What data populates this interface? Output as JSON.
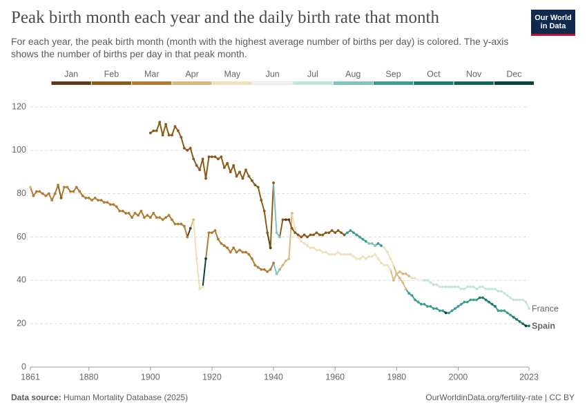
{
  "chart_data": {
    "type": "line",
    "title": "Peak birth month each year and the daily birth rate that month",
    "subtitle": "For each year, the peak birth month (month with the highest average number of births per day) is colored. The y-axis shows the number of births per day in that peak month.",
    "logo": [
      "Our World",
      "in Data"
    ],
    "source_label": "Data source:",
    "source": "Human Mortality Database (2025)",
    "credit": "OurWorldinData.org/fertility-rate | CC BY",
    "months": [
      "Jan",
      "Feb",
      "Mar",
      "Apr",
      "May",
      "Jun",
      "Jul",
      "Aug",
      "Sep",
      "Oct",
      "Nov",
      "Dec"
    ],
    "month_colors": [
      "#5b3a14",
      "#8a5a19",
      "#b07b32",
      "#d9b97e",
      "#eedfbd",
      "#f3f1ef",
      "#c2e5de",
      "#82c6ba",
      "#3d9c92",
      "#1b7b6f",
      "#11645a",
      "#0a4238"
    ],
    "xlim": [
      1861,
      2023
    ],
    "xticks": [
      1861,
      1880,
      1900,
      1920,
      1940,
      1960,
      1980,
      2000,
      2023
    ],
    "ylim": [
      0,
      120
    ],
    "yticks": [
      0,
      20,
      40,
      60,
      80,
      100,
      120
    ],
    "grid": true,
    "x": [
      1861,
      1862,
      1863,
      1864,
      1865,
      1866,
      1867,
      1868,
      1869,
      1870,
      1871,
      1872,
      1873,
      1874,
      1875,
      1876,
      1877,
      1878,
      1879,
      1880,
      1881,
      1882,
      1883,
      1884,
      1885,
      1886,
      1887,
      1888,
      1889,
      1890,
      1891,
      1892,
      1893,
      1894,
      1895,
      1896,
      1897,
      1898,
      1899,
      1900,
      1901,
      1902,
      1903,
      1904,
      1905,
      1906,
      1907,
      1908,
      1909,
      1910,
      1911,
      1912,
      1913,
      1914,
      1915,
      1916,
      1917,
      1918,
      1919,
      1920,
      1921,
      1922,
      1923,
      1924,
      1925,
      1926,
      1927,
      1928,
      1929,
      1930,
      1931,
      1932,
      1933,
      1934,
      1935,
      1936,
      1937,
      1938,
      1939,
      1940,
      1941,
      1942,
      1943,
      1944,
      1945,
      1946,
      1947,
      1948,
      1949,
      1950,
      1951,
      1952,
      1953,
      1954,
      1955,
      1956,
      1957,
      1958,
      1959,
      1960,
      1961,
      1962,
      1963,
      1964,
      1965,
      1966,
      1967,
      1968,
      1969,
      1970,
      1971,
      1972,
      1973,
      1974,
      1975,
      1976,
      1977,
      1978,
      1979,
      1980,
      1981,
      1982,
      1983,
      1984,
      1985,
      1986,
      1987,
      1988,
      1989,
      1990,
      1991,
      1992,
      1993,
      1994,
      1995,
      1996,
      1997,
      1998,
      1999,
      2000,
      2001,
      2002,
      2003,
      2004,
      2005,
      2006,
      2007,
      2008,
      2009,
      2010,
      2011,
      2012,
      2013,
      2014,
      2015,
      2016,
      2017,
      2018,
      2019,
      2020,
      2021,
      2022,
      2023
    ],
    "series": [
      {
        "name": "France",
        "values": [
          83,
          79,
          81,
          81,
          80,
          79,
          80,
          77,
          80,
          84,
          78,
          83,
          83,
          81,
          81,
          83,
          81,
          79,
          78,
          78,
          77,
          78,
          77,
          77,
          76,
          76,
          75,
          75,
          74,
          72,
          72,
          71,
          71,
          69,
          71,
          70,
          72,
          69,
          70,
          69,
          71,
          69,
          69,
          68,
          69,
          70,
          68,
          66,
          66,
          66,
          65,
          60,
          64,
          68,
          50,
          36,
          37,
          50,
          62,
          62,
          63,
          59,
          57,
          56,
          55,
          53,
          55,
          53,
          54,
          53,
          53,
          52,
          50,
          47,
          46,
          45,
          45,
          44,
          45,
          48,
          43,
          45,
          47,
          49,
          50,
          71,
          64,
          60,
          58,
          57,
          56,
          55,
          55,
          54,
          54,
          53,
          53,
          52,
          52,
          52,
          53,
          52,
          52,
          52,
          52,
          51,
          50,
          50,
          51,
          50,
          51,
          51,
          52,
          50,
          48,
          47,
          47,
          45,
          40,
          43,
          44,
          43,
          43,
          42,
          41,
          41,
          40,
          40,
          40,
          40,
          39,
          38,
          38,
          37,
          37,
          37,
          37,
          37,
          37,
          37,
          36,
          36,
          37,
          37,
          37,
          36,
          37,
          37,
          36,
          36,
          36,
          36,
          35,
          35,
          34,
          33,
          32,
          31,
          31,
          31,
          31,
          30,
          27
        ],
        "peak_month": [
          4,
          3,
          3,
          3,
          3,
          3,
          3,
          3,
          3,
          3,
          2,
          3,
          3,
          3,
          3,
          3,
          3,
          3,
          3,
          3,
          3,
          3,
          3,
          3,
          3,
          3,
          3,
          3,
          3,
          3,
          3,
          3,
          3,
          3,
          3,
          3,
          3,
          3,
          3,
          3,
          3,
          3,
          3,
          3,
          3,
          3,
          3,
          3,
          3,
          3,
          3,
          3,
          1,
          4,
          5,
          5,
          5,
          12,
          3,
          3,
          3,
          3,
          3,
          3,
          3,
          3,
          3,
          3,
          3,
          3,
          3,
          3,
          3,
          3,
          3,
          3,
          3,
          3,
          3,
          3,
          8,
          8,
          4,
          4,
          4,
          4,
          5,
          5,
          5,
          5,
          5,
          5,
          5,
          5,
          5,
          5,
          5,
          5,
          5,
          5,
          5,
          5,
          5,
          5,
          5,
          5,
          5,
          5,
          5,
          5,
          5,
          5,
          5,
          5,
          5,
          5,
          5,
          5,
          4,
          4,
          4,
          4,
          4,
          4,
          5,
          5,
          6,
          6,
          7,
          7,
          7,
          7,
          7,
          7,
          7,
          7,
          7,
          7,
          7,
          7,
          7,
          7,
          7,
          7,
          7,
          7,
          7,
          7,
          7,
          7,
          7,
          7,
          7,
          7,
          7,
          7,
          7,
          7,
          7,
          7,
          7,
          7,
          7
        ]
      },
      {
        "name": "Spain",
        "values": [
          null,
          null,
          null,
          null,
          null,
          null,
          null,
          null,
          null,
          null,
          null,
          null,
          null,
          null,
          null,
          null,
          null,
          null,
          null,
          null,
          null,
          null,
          null,
          null,
          null,
          null,
          null,
          null,
          null,
          null,
          null,
          null,
          null,
          null,
          null,
          null,
          null,
          null,
          null,
          108,
          109,
          109,
          113,
          107,
          112,
          107,
          107,
          111,
          109,
          106,
          101,
          100,
          101,
          96,
          93,
          91,
          96,
          87,
          97,
          97,
          97,
          96,
          97,
          92,
          94,
          90,
          93,
          88,
          90,
          87,
          91,
          88,
          86,
          84,
          83,
          77,
          72,
          62,
          55,
          85,
          62,
          60,
          68,
          68,
          68,
          64,
          62,
          61,
          60,
          61,
          60,
          61,
          61,
          62,
          61,
          61,
          62,
          62,
          63,
          62,
          63,
          62,
          61,
          62,
          63,
          62,
          61,
          60,
          59,
          58,
          57,
          57,
          56,
          57,
          56,
          55,
          53,
          50,
          47,
          43,
          41,
          39,
          36,
          34,
          33,
          31,
          30,
          29,
          29,
          28,
          28,
          27,
          27,
          26,
          26,
          25,
          25,
          26,
          27,
          28,
          29,
          30,
          30,
          31,
          31,
          31,
          32,
          32,
          31,
          30,
          29,
          28,
          26,
          26,
          26,
          25,
          24,
          23,
          22,
          21,
          20,
          19,
          19
        ],
        "peak_month": [
          null,
          null,
          null,
          null,
          null,
          null,
          null,
          null,
          null,
          null,
          null,
          null,
          null,
          null,
          null,
          null,
          null,
          null,
          null,
          null,
          null,
          null,
          null,
          null,
          null,
          null,
          null,
          null,
          null,
          null,
          null,
          null,
          null,
          null,
          null,
          null,
          null,
          null,
          null,
          2,
          2,
          2,
          2,
          2,
          2,
          2,
          2,
          2,
          2,
          2,
          2,
          2,
          2,
          2,
          2,
          2,
          2,
          2,
          2,
          2,
          2,
          2,
          2,
          2,
          2,
          2,
          2,
          2,
          2,
          2,
          2,
          2,
          2,
          2,
          2,
          2,
          2,
          2,
          1,
          2,
          8,
          8,
          2,
          1,
          1,
          2,
          2,
          2,
          2,
          2,
          2,
          2,
          2,
          2,
          2,
          2,
          2,
          2,
          2,
          2,
          2,
          2,
          2,
          9,
          9,
          9,
          9,
          9,
          9,
          9,
          8,
          8,
          8,
          9,
          9,
          5,
          5,
          5,
          5,
          4,
          4,
          4,
          4,
          9,
          9,
          9,
          9,
          9,
          9,
          9,
          9,
          9,
          9,
          9,
          9,
          12,
          9,
          9,
          9,
          9,
          9,
          9,
          9,
          9,
          9,
          9,
          10,
          10,
          10,
          10,
          10,
          10,
          9,
          9,
          9,
          9,
          9,
          10,
          10,
          10,
          10,
          12,
          10
        ]
      }
    ]
  }
}
